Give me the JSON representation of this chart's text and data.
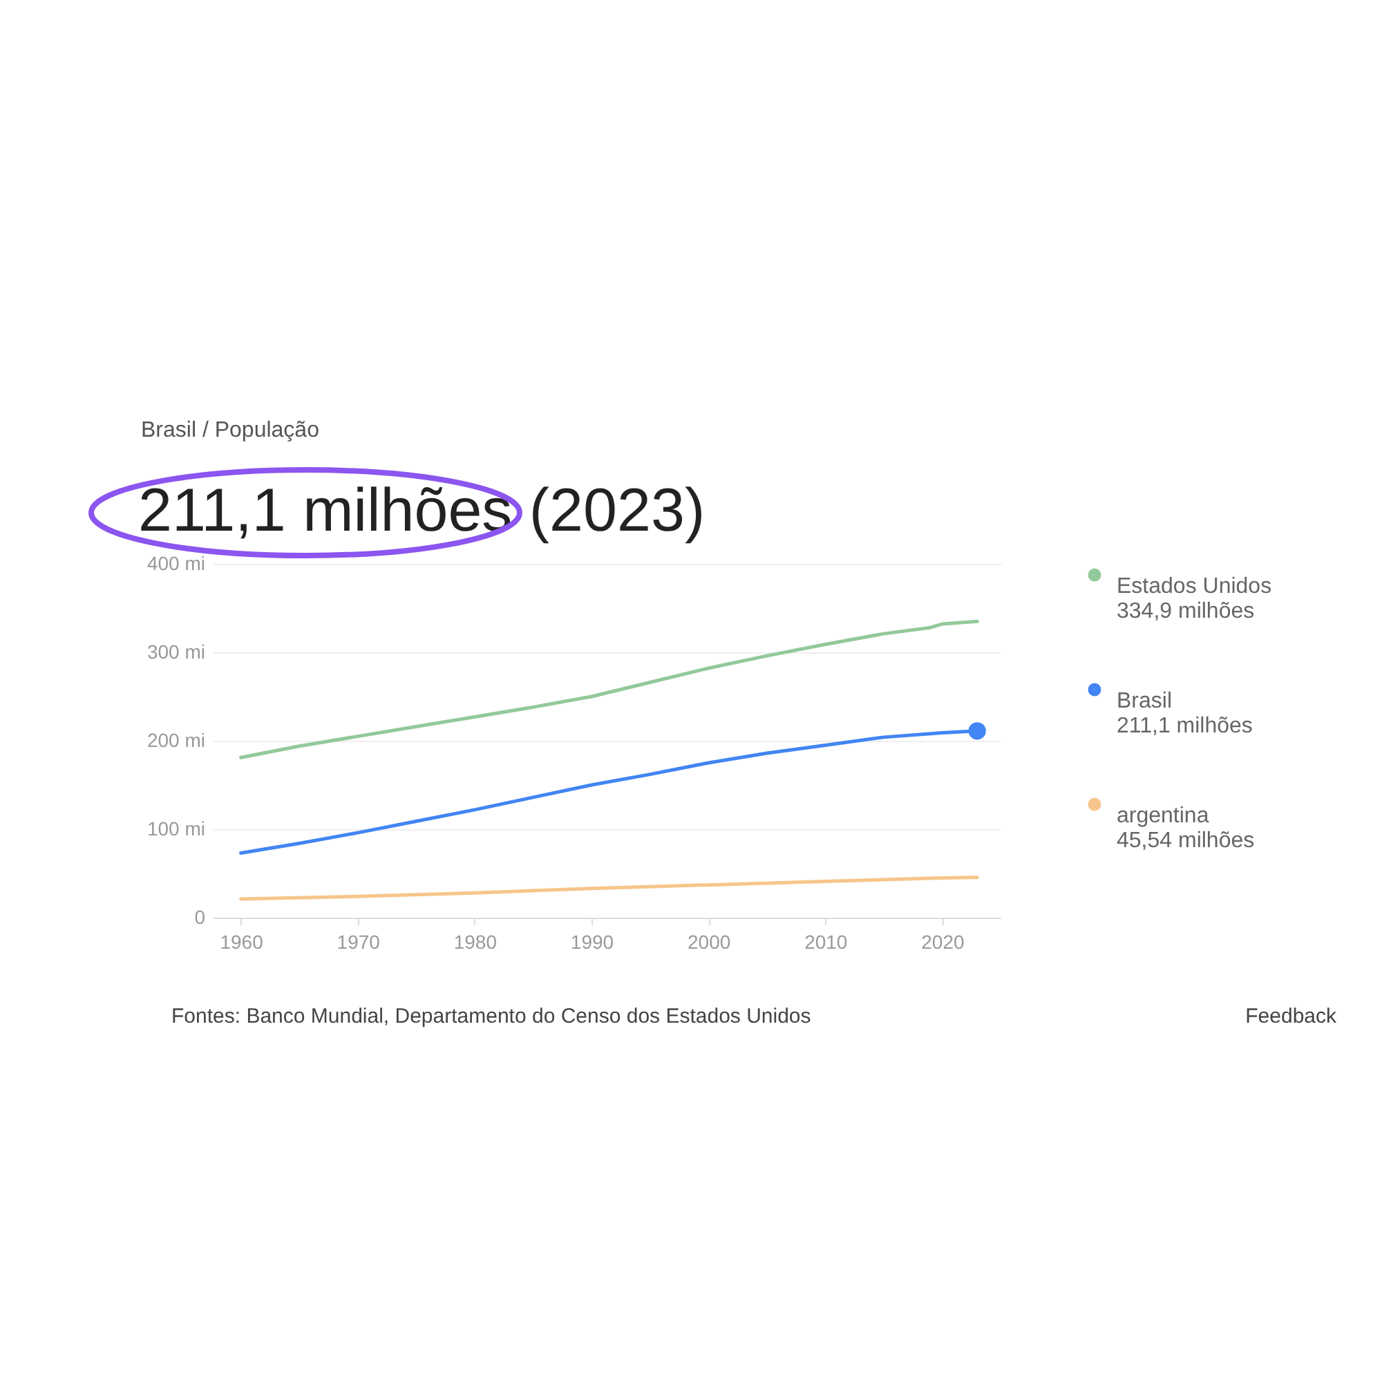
{
  "chart_data": {
    "type": "line",
    "subtitle": "Brasil / População",
    "title": "211,1 milhões (2023)",
    "xlim": [
      1957.6,
      2025
    ],
    "xticks": [
      1960,
      1970,
      1980,
      1990,
      2000,
      2010,
      2020
    ],
    "ylim": [
      0,
      400
    ],
    "yticks": [
      0,
      {
        "value": 100,
        "label": "100 mi"
      },
      {
        "value": 200,
        "label": "200 mi"
      },
      {
        "value": 300,
        "label": "300 mi"
      },
      {
        "value": 400,
        "label": "400 mi"
      }
    ],
    "grid": "y",
    "legend": "right",
    "marker": "none",
    "series": [
      {
        "name": "Estados Unidos",
        "color": "#93c99a",
        "x": [
          1960,
          1965,
          1970,
          1975,
          1980,
          1985,
          1990,
          1995,
          2000,
          2005,
          2010,
          2015,
          2019,
          2020,
          2023
        ],
        "values": [
          181,
          194,
          205,
          216,
          227,
          238,
          250,
          266,
          282,
          296,
          309,
          321,
          328,
          332,
          334.9
        ]
      },
      {
        "name": "Brasil",
        "color": "#4285f4",
        "x": [
          1960,
          1965,
          1970,
          1975,
          1980,
          1985,
          1990,
          1995,
          2000,
          2005,
          2010,
          2015,
          2020,
          2023
        ],
        "values": [
          73,
          84,
          96,
          109,
          122,
          136,
          150,
          162,
          175,
          186,
          195,
          204,
          209,
          211.1
        ]
      },
      {
        "name": "argentina",
        "color": "#f6c58b",
        "x": [
          1960,
          1970,
          1980,
          1990,
          2000,
          2010,
          2020,
          2023
        ],
        "values": [
          21,
          24,
          28,
          33,
          37,
          41,
          45,
          45.54
        ]
      },
      {
        "type": "scatter",
        "color": "#4285f4",
        "x": [
          2023
        ],
        "values": [
          211.1
        ],
        "marker": "circle"
      }
    ],
    "annotations": [
      "334,9 milhões",
      "211,1 milhões",
      "45,54 milhões",
      "Fontes: Banco Mundial, Departamento do Censo dos Estados Unidos",
      "Feedback"
    ]
  }
}
